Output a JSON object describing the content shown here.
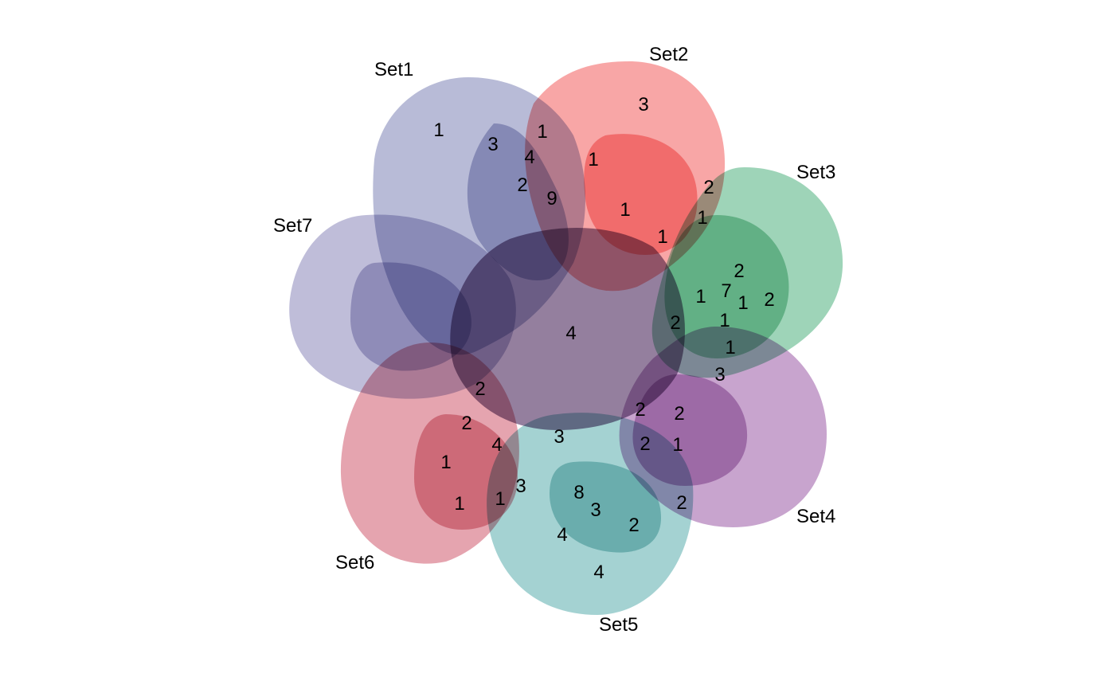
{
  "diagram": {
    "type": "venn-7",
    "sets": [
      {
        "id": "set1",
        "name": "Set1",
        "color": "#7e83b6"
      },
      {
        "id": "set2",
        "name": "Set2",
        "color": "#f25c5c"
      },
      {
        "id": "set3",
        "name": "Set3",
        "color": "#4fb07e"
      },
      {
        "id": "set4",
        "name": "Set4",
        "color": "#9a5aa5"
      },
      {
        "id": "set5",
        "name": "Set5",
        "color": "#5aadad"
      },
      {
        "id": "set6",
        "name": "Set6",
        "color": "#d05a6e"
      },
      {
        "id": "set7",
        "name": "Set7",
        "color": "#8a86ba"
      }
    ],
    "regions": [
      {
        "id": "r01",
        "count": "1"
      },
      {
        "id": "r02",
        "count": "3"
      },
      {
        "id": "r03",
        "count": "1"
      },
      {
        "id": "r04",
        "count": "3"
      },
      {
        "id": "r05",
        "count": "4"
      },
      {
        "id": "r06",
        "count": "1"
      },
      {
        "id": "r07",
        "count": "2"
      },
      {
        "id": "r08",
        "count": "9"
      },
      {
        "id": "r09",
        "count": "1"
      },
      {
        "id": "r10",
        "count": "2"
      },
      {
        "id": "r11",
        "count": "1"
      },
      {
        "id": "r12",
        "count": "1"
      },
      {
        "id": "r13",
        "count": "2"
      },
      {
        "id": "r14",
        "count": "1"
      },
      {
        "id": "r15",
        "count": "7"
      },
      {
        "id": "r16",
        "count": "1"
      },
      {
        "id": "r17",
        "count": "2"
      },
      {
        "id": "r18",
        "count": "2"
      },
      {
        "id": "r19",
        "count": "1"
      },
      {
        "id": "r20",
        "count": "1"
      },
      {
        "id": "r21",
        "count": "4"
      },
      {
        "id": "r22",
        "count": "3"
      },
      {
        "id": "r23",
        "count": "2"
      },
      {
        "id": "r24",
        "count": "2"
      },
      {
        "id": "r25",
        "count": "2"
      },
      {
        "id": "r26",
        "count": "2"
      },
      {
        "id": "r27",
        "count": "2"
      },
      {
        "id": "r28",
        "count": "3"
      },
      {
        "id": "r29",
        "count": "4"
      },
      {
        "id": "r30",
        "count": "1"
      },
      {
        "id": "r31",
        "count": "1"
      },
      {
        "id": "r32",
        "count": "1"
      },
      {
        "id": "r33",
        "count": "3"
      },
      {
        "id": "r34",
        "count": "8"
      },
      {
        "id": "r35",
        "count": "3"
      },
      {
        "id": "r36",
        "count": "2"
      },
      {
        "id": "r37",
        "count": "1"
      },
      {
        "id": "r38",
        "count": "4"
      },
      {
        "id": "r39",
        "count": "4"
      },
      {
        "id": "r40",
        "count": "2"
      }
    ]
  }
}
